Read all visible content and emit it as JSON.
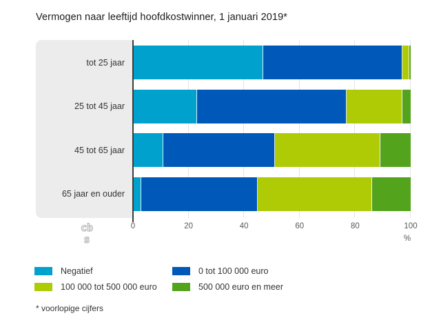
{
  "title": "Vermogen naar leeftijd hoofdkostwinner, 1 januari 2019*",
  "footnote": "* voorlopige cijfers",
  "colors": {
    "negatief": "#00a1cd",
    "blauw_0_100k": "#0058b8",
    "groen_100k_500k": "#afcb05",
    "groen_500k_meer": "#53a31d",
    "panel": "#ececec",
    "axis": "#3c3c3c",
    "gridline": "#e3e3e3"
  },
  "legend": [
    {
      "label": "Negatief",
      "color": "#00a1cd"
    },
    {
      "label": "0 tot 100 000 euro",
      "color": "#0058b8"
    },
    {
      "label": "100 000 tot 500 000 euro",
      "color": "#afcb05"
    },
    {
      "label": "500 000 euro en meer",
      "color": "#53a31d"
    }
  ],
  "axis": {
    "ticks": [
      0,
      20,
      40,
      60,
      80,
      100
    ],
    "unit": "%"
  },
  "logo": "cbs",
  "chart_data": {
    "type": "bar",
    "stacked": true,
    "orientation": "horizontal",
    "title": "Vermogen naar leeftijd hoofdkostwinner, 1 januari 2019*",
    "categories": [
      "tot 25 jaar",
      "25 tot 45 jaar",
      "45 tot 65 jaar",
      "65 jaar en ouder"
    ],
    "series": [
      {
        "name": "Negatief",
        "color": "#00a1cd",
        "values": [
          47,
          23,
          11,
          3
        ]
      },
      {
        "name": "0 tot 100 000 euro",
        "color": "#0058b8",
        "values": [
          50,
          54,
          40,
          42
        ]
      },
      {
        "name": "100 000 tot 500 000 euro",
        "color": "#afcb05",
        "values": [
          2.6,
          20,
          38,
          41
        ]
      },
      {
        "name": "500 000 euro en meer",
        "color": "#53a31d",
        "values": [
          0.4,
          3,
          11,
          14
        ]
      }
    ],
    "xlabel": "%",
    "xlim": [
      0,
      100
    ],
    "xticks": [
      0,
      20,
      40,
      60,
      80,
      100
    ],
    "legend_position": "bottom",
    "grid": true
  }
}
